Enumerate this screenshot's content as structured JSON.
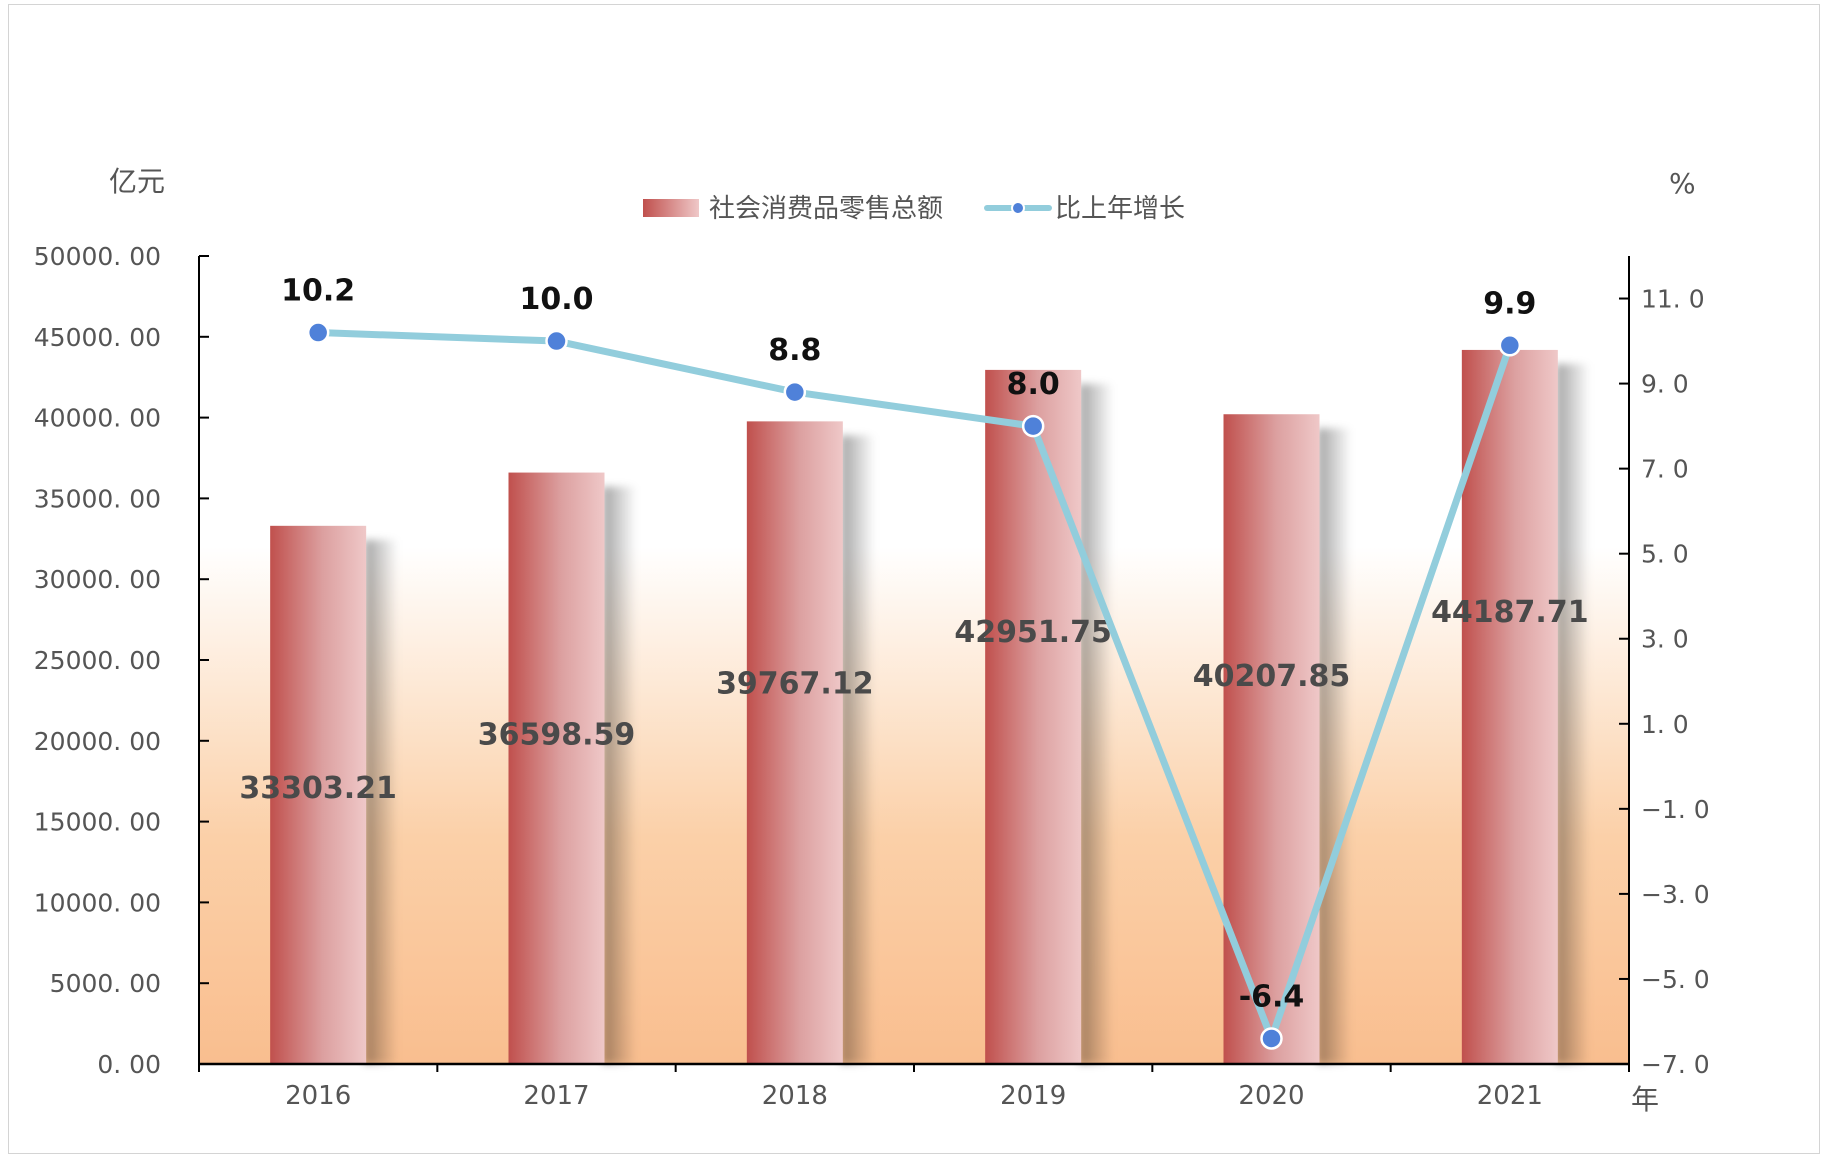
{
  "chart_data": {
    "type": "bar",
    "categories": [
      "2016",
      "2017",
      "2018",
      "2019",
      "2020",
      "2021"
    ],
    "series": [
      {
        "name": "社会消费品零售总额",
        "type": "bar",
        "axis": "left",
        "values": [
          33303.21,
          36598.59,
          39767.12,
          42951.75,
          40207.85,
          44187.71
        ],
        "labels": [
          "33303.21",
          "36598.59",
          "39767.12",
          "42951.75",
          "40207.85",
          "44187.71"
        ]
      },
      {
        "name": "比上年增长",
        "type": "line",
        "axis": "right",
        "values": [
          10.2,
          10.0,
          8.8,
          8.0,
          -6.4,
          9.9
        ],
        "labels": [
          "10.2",
          "10.0",
          "8.8",
          "8.0",
          "-6.4",
          "9.9"
        ]
      }
    ],
    "y_left": {
      "unit": "亿元",
      "ylim": [
        0,
        50000
      ],
      "ticks": [
        0,
        5000,
        10000,
        15000,
        20000,
        25000,
        30000,
        35000,
        40000,
        45000,
        50000
      ],
      "tick_labels": [
        "0. 00",
        "5000. 00",
        "10000. 00",
        "15000. 00",
        "20000. 00",
        "25000. 00",
        "30000. 00",
        "35000. 00",
        "40000. 00",
        "45000. 00",
        "50000. 00"
      ]
    },
    "y_right": {
      "unit": "%",
      "ylim": [
        -7.0,
        12.0
      ],
      "ticks": [
        -7,
        -5,
        -3,
        -1,
        1,
        3,
        5,
        7,
        9,
        11
      ],
      "tick_labels": [
        "−7. 0",
        "−5. 0",
        "−3. 0",
        "−1. 0",
        "1. 0",
        "3. 0",
        "5. 0",
        "7. 0",
        "9. 0",
        "11. 0"
      ]
    },
    "x_unit": "年",
    "legend_position": "top-center",
    "grid": false,
    "colors": {
      "bar_dark": "#c0504d",
      "bar_light": "#ecc0c0",
      "line": "#92cddc",
      "marker": "#4f81d9",
      "background_top": "#ffffff",
      "background_bottom": "#f9be8f"
    }
  }
}
